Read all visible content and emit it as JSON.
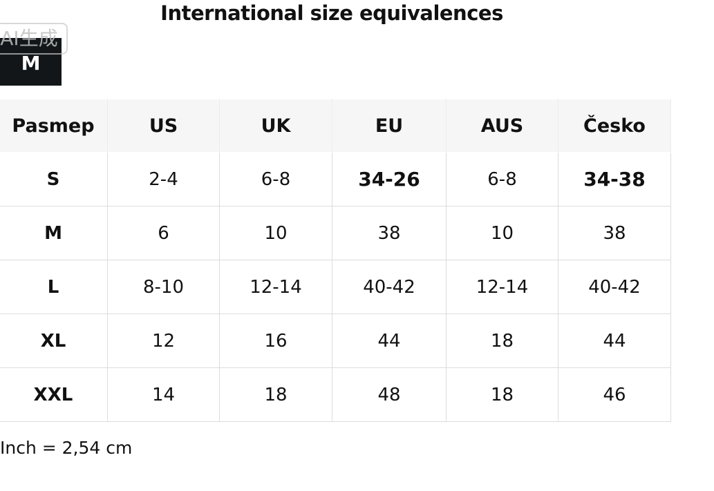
{
  "header": {
    "title": "International size equivalences"
  },
  "badge": {
    "watermark": "AI生成",
    "label": "M"
  },
  "table": {
    "header": [
      "Pasmep",
      "US",
      "UK",
      "EU",
      "AUS",
      "Česko"
    ],
    "rows": [
      [
        "S",
        "2-4",
        "6-8",
        "34-26",
        "6-8",
        "34-38"
      ],
      [
        "M",
        "6",
        "10",
        "38",
        "10",
        "38"
      ],
      [
        "L",
        "8-10",
        "12-14",
        "40-42",
        "12-14",
        "40-42"
      ],
      [
        "XL",
        "12",
        "16",
        "44",
        "18",
        "44"
      ],
      [
        "XXL",
        "14",
        "18",
        "48",
        "18",
        "46"
      ]
    ]
  },
  "footnote": "Inch = 2,54 cm"
}
